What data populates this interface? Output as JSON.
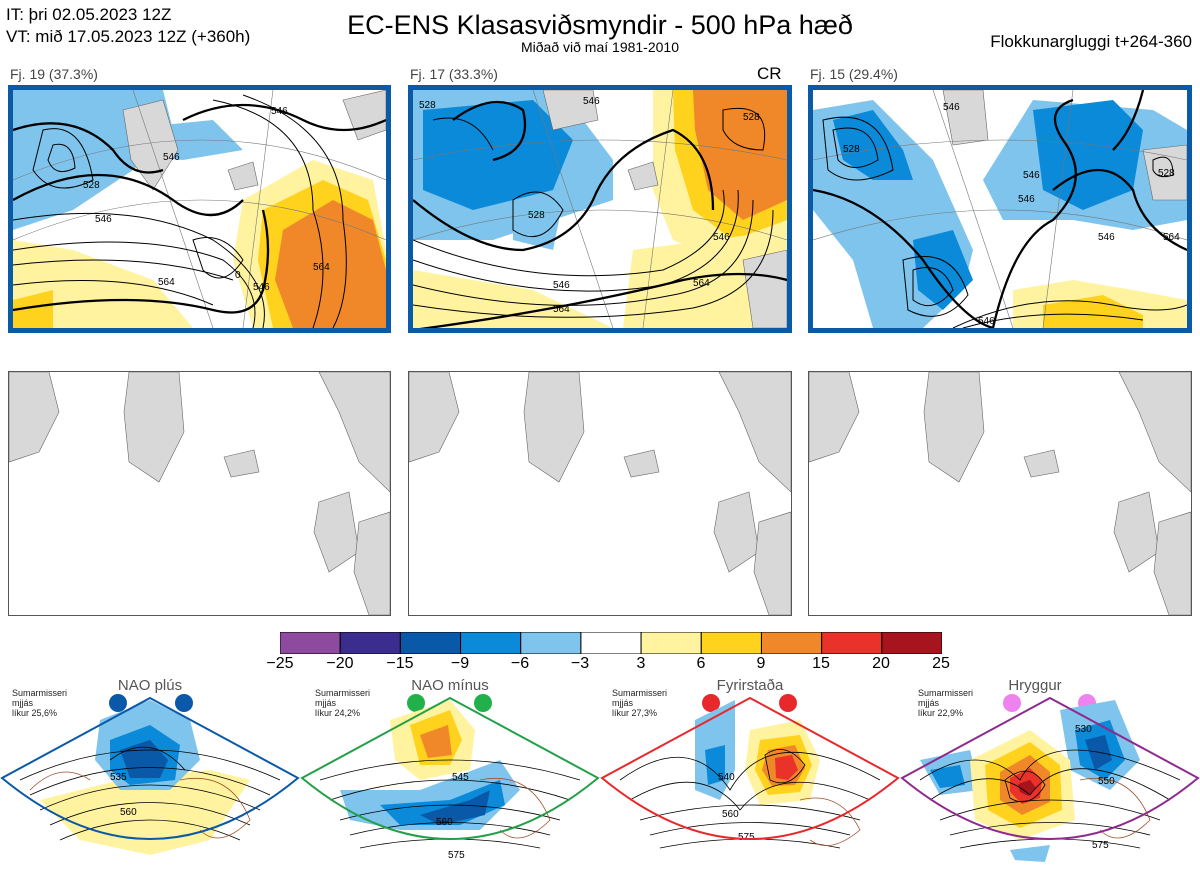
{
  "header": {
    "it_line": "IT: þri 02.05.2023 12Z",
    "vt_line": "VT: mið 17.05.2023 12Z  (+360h)",
    "title": "EC-ENS Klasasviðsmyndir - 500 hPa hæð",
    "subtitle": "Miðað við maí 1981-2010",
    "window": "Flokkunargluggi t+264-360"
  },
  "panels": [
    {
      "label": "Fj. 19 (37.3%)",
      "tag": ""
    },
    {
      "label": "Fj. 17 (33.3%)",
      "tag": "CR"
    },
    {
      "label": "Fj. 15 (29.4%)",
      "tag": ""
    }
  ],
  "contour_labels": {
    "p1": [
      "546",
      "528",
      "546",
      "546",
      "564",
      "564",
      "546",
      "0"
    ],
    "p2": [
      "528",
      "528",
      "546",
      "546",
      "546",
      "564",
      "564",
      "528"
    ],
    "p3": [
      "528",
      "546",
      "546",
      "546",
      "546",
      "564",
      "546",
      "528"
    ]
  },
  "colorbar": {
    "ticks": [
      "−25",
      "−20",
      "−15",
      "−9",
      "−6",
      "−3",
      "3",
      "6",
      "9",
      "15",
      "20",
      "25"
    ],
    "colors": [
      "#8e4a9e",
      "#3a2d8e",
      "#0a58a8",
      "#0a8ad8",
      "#7ec4ec",
      "#ffffff",
      "#fff3a0",
      "#ffd21e",
      "#f0882a",
      "#e8322a",
      "#a8141e"
    ]
  },
  "regimes": [
    {
      "name": "NAO plús",
      "note": [
        "Sumarmisseri",
        "mjjás",
        "líkur 25,6%"
      ],
      "dot_color": "#0a58a8",
      "frame_color": "#0a58a8",
      "labels": [
        "535",
        "560"
      ]
    },
    {
      "name": "NAO mínus",
      "note": [
        "Sumarmisseri",
        "mjjás",
        "líkur 24,2%"
      ],
      "dot_color": "#22b04a",
      "frame_color": "#22a048",
      "labels": [
        "545",
        "560",
        "575"
      ]
    },
    {
      "name": "Fyrirstaða",
      "note": [
        "Sumarmisseri",
        "mjjás",
        "líkur 27,3%"
      ],
      "dot_color": "#e8282a",
      "frame_color": "#e8282a",
      "labels": [
        "540",
        "560",
        "575"
      ]
    },
    {
      "name": "Hryggur",
      "note": [
        "Sumarmisseri",
        "mjjás",
        "líkur 22,9%"
      ],
      "dot_color": "#ee82ee",
      "frame_color": "#8e2a8e",
      "labels": [
        "530",
        "550",
        "575"
      ]
    }
  ]
}
